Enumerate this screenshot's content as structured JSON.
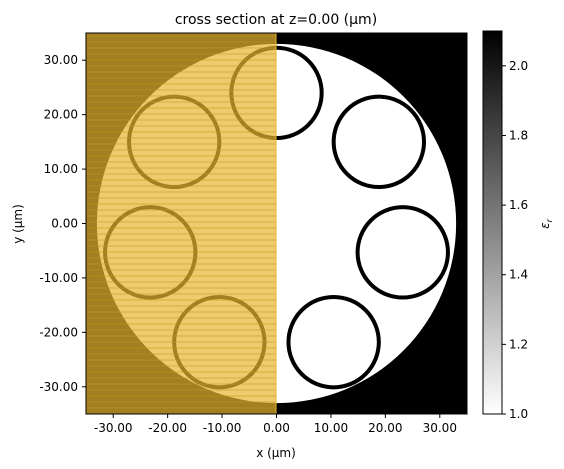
{
  "chart_data": {
    "type": "heatmap",
    "title": "cross section at z=0.00 (μm)",
    "xlabel": "x (μm)",
    "ylabel": "y (μm)",
    "xlim": [
      -35,
      35
    ],
    "ylim": [
      -35,
      35
    ],
    "x_ticks": [
      -30,
      -20,
      -10,
      0,
      10,
      20,
      30
    ],
    "y_ticks": [
      -30,
      -20,
      -10,
      0,
      10,
      20,
      30
    ],
    "x_tick_labels": [
      "-30.00",
      "-20.00",
      "-10.00",
      "0.00",
      "10.00",
      "20.00",
      "30.00"
    ],
    "y_tick_labels": [
      "-30.00",
      "-20.00",
      "-10.00",
      "0.00",
      "10.00",
      "20.00",
      "30.00"
    ],
    "grid": false,
    "background_permittivity": 2.1,
    "core": {
      "center": [
        0,
        0
      ],
      "radius": 33,
      "permittivity": 1.0
    },
    "rings": [
      {
        "center": [
          0,
          24
        ],
        "radius": 8.3
      },
      {
        "center": [
          18.8,
          15
        ],
        "radius": 8.3
      },
      {
        "center": [
          23.2,
          -5.3
        ],
        "radius": 8.3
      },
      {
        "center": [
          10.5,
          -21.8
        ],
        "radius": 8.3
      },
      {
        "center": [
          -10.5,
          -21.8
        ],
        "radius": 8.3
      },
      {
        "center": [
          -23.2,
          -5.3
        ],
        "radius": 8.3
      },
      {
        "center": [
          -18.8,
          15
        ],
        "radius": 8.3
      }
    ],
    "ring_permittivity": 2.1,
    "overlay": {
      "x_range": [
        -35,
        0
      ],
      "y_range": [
        -35,
        35
      ],
      "color": "#e8b52f",
      "opacity": 0.7,
      "hatched": true
    },
    "colorbar": {
      "label": "ε_r",
      "label_main": "ε",
      "label_sub": "r",
      "min": 1.0,
      "max": 2.1,
      "ticks": [
        1.0,
        1.2,
        1.4,
        1.6,
        1.8,
        2.0
      ],
      "tick_labels": [
        "1.0",
        "1.2",
        "1.4",
        "1.6",
        "1.8",
        "2.0"
      ],
      "colormap": "gray_r"
    }
  }
}
